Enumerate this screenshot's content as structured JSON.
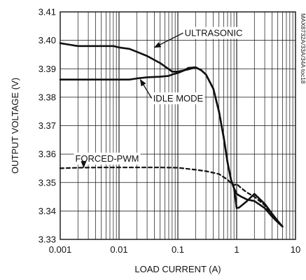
{
  "chart_data": {
    "type": "line",
    "xlabel": "LOAD CURRENT (A)",
    "ylabel": "OUTPUT VOLTAGE (V)",
    "xscale": "log",
    "xlim": [
      0.001,
      10
    ],
    "ylim": [
      3.33,
      3.41
    ],
    "grid": true,
    "x_ticks": [
      {
        "value": 0.001,
        "label": "0.001"
      },
      {
        "value": 0.01,
        "label": "0.01"
      },
      {
        "value": 0.1,
        "label": "0.1"
      },
      {
        "value": 1,
        "label": "1"
      },
      {
        "value": 10,
        "label": "10"
      }
    ],
    "y_ticks": [
      {
        "value": 3.33,
        "label": "3.33"
      },
      {
        "value": 3.34,
        "label": "3.34"
      },
      {
        "value": 3.35,
        "label": "3.35"
      },
      {
        "value": 3.36,
        "label": "3.36"
      },
      {
        "value": 3.37,
        "label": "3.37"
      },
      {
        "value": 3.38,
        "label": "3.38"
      },
      {
        "value": 3.39,
        "label": "3.39"
      },
      {
        "value": 3.4,
        "label": "3.40"
      },
      {
        "value": 3.41,
        "label": "3.41"
      }
    ],
    "series": [
      {
        "name": "ULTRASONIC",
        "style": "solid",
        "x": [
          0.001,
          0.0015,
          0.002,
          0.003,
          0.005,
          0.008,
          0.01,
          0.015,
          0.02,
          0.03,
          0.05,
          0.08,
          0.1,
          0.15,
          0.2,
          0.25,
          0.3,
          0.4,
          0.5,
          0.6,
          0.7,
          0.8,
          0.9,
          1.0,
          1.2,
          1.5,
          2.0,
          3.0,
          4.0,
          5.0,
          6.0
        ],
        "y": [
          3.399,
          3.3984,
          3.398,
          3.398,
          3.398,
          3.398,
          3.3975,
          3.397,
          3.396,
          3.3945,
          3.392,
          3.389,
          3.389,
          3.3898,
          3.3905,
          3.3895,
          3.388,
          3.383,
          3.375,
          3.366,
          3.357,
          3.351,
          3.348,
          3.346,
          3.345,
          3.344,
          3.3435,
          3.341,
          3.338,
          3.336,
          3.3345
        ]
      },
      {
        "name": "IDLE MODE",
        "style": "solid",
        "x": [
          0.001,
          0.002,
          0.005,
          0.01,
          0.015,
          0.02,
          0.03,
          0.05,
          0.07,
          0.08,
          0.1,
          0.13,
          0.15,
          0.2,
          0.25,
          0.3,
          0.4,
          0.5,
          0.6,
          0.7,
          0.8,
          0.9,
          1.0,
          1.1,
          1.5,
          2.0,
          3.0,
          4.0,
          5.0,
          6.0
        ],
        "y": [
          3.3862,
          3.3862,
          3.3862,
          3.3862,
          3.3862,
          3.3866,
          3.387,
          3.3872,
          3.3875,
          3.388,
          3.3885,
          3.3895,
          3.3903,
          3.3905,
          3.3895,
          3.388,
          3.383,
          3.375,
          3.366,
          3.357,
          3.351,
          3.348,
          3.341,
          3.3412,
          3.3435,
          3.346,
          3.3425,
          3.339,
          3.3365,
          3.3345
        ]
      },
      {
        "name": "FORCED-PWM",
        "style": "dashed",
        "x": [
          0.001,
          0.002,
          0.005,
          0.01,
          0.02,
          0.05,
          0.1,
          0.2,
          0.3,
          0.5,
          0.7,
          0.8,
          0.9,
          1.0,
          1.2,
          1.5,
          2.0,
          3.0,
          4.0,
          5.0,
          6.0
        ],
        "y": [
          3.355,
          3.3552,
          3.3553,
          3.3553,
          3.3553,
          3.3553,
          3.3552,
          3.3545,
          3.354,
          3.353,
          3.351,
          3.3498,
          3.349,
          3.3495,
          3.348,
          3.3465,
          3.345,
          3.342,
          3.3385,
          3.3365,
          3.3345
        ]
      }
    ],
    "annotations": [
      {
        "text": "ULTRASONIC",
        "x_text": 0.13,
        "y_text": 3.4026,
        "x_arrow": 0.04,
        "y_arrow": 3.3975
      },
      {
        "text": "IDLE MODE",
        "x_text": 0.038,
        "y_text": 3.3796,
        "x_arrow": 0.023,
        "y_arrow": 3.3862
      },
      {
        "text": "FORCED-PWM",
        "x_text": 0.0018,
        "y_text": 3.3584,
        "x_arrow": 0.0025,
        "y_arrow": 3.3553
      }
    ],
    "part_number": "MAX8732A/33A/34A toc18"
  }
}
